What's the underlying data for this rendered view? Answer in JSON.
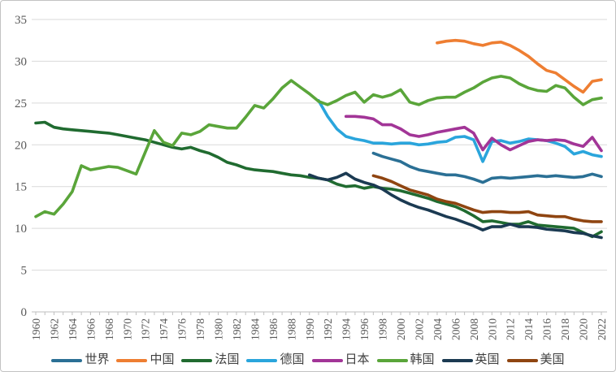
{
  "chart_data": {
    "type": "line",
    "title": "",
    "xlabel": "",
    "ylabel": "",
    "xlim": [
      1960,
      2022
    ],
    "ylim": [
      0,
      35
    ],
    "grid": "horizontal",
    "legend_position": "bottom",
    "y_ticks": [
      0,
      5,
      10,
      15,
      20,
      25,
      30,
      35
    ],
    "x_ticks": [
      "1960",
      "1962",
      "1964",
      "1966",
      "1968",
      "1970",
      "1972",
      "1974",
      "1976",
      "1978",
      "1980",
      "1982",
      "1984",
      "1986",
      "1988",
      "1990",
      "1992",
      "1994",
      "1996",
      "1998",
      "2000",
      "2002",
      "2004",
      "2006",
      "2008",
      "2010",
      "2012",
      "2014",
      "2016",
      "2018",
      "2020",
      "2022"
    ],
    "series": [
      {
        "id": "world",
        "label": "世界",
        "color": "#2b7095",
        "start_year": 1997,
        "values": [
          19.0,
          18.6,
          18.3,
          18.0,
          17.4,
          17.0,
          16.8,
          16.6,
          16.4,
          16.4,
          16.2,
          15.9,
          15.5,
          16.0,
          16.1,
          16.0,
          16.1,
          16.2,
          16.3,
          16.2,
          16.3,
          16.2,
          16.1,
          16.2,
          16.5,
          16.2
        ]
      },
      {
        "id": "china",
        "label": "中国",
        "color": "#ee7e32",
        "start_year": 2004,
        "values": [
          32.2,
          32.4,
          32.5,
          32.4,
          32.1,
          31.9,
          32.2,
          32.3,
          31.9,
          31.3,
          30.6,
          29.7,
          28.9,
          28.6,
          27.8,
          27.0,
          26.3,
          27.6,
          27.8
        ]
      },
      {
        "id": "france",
        "label": "法国",
        "color": "#206b30",
        "start_year": 1960,
        "values": [
          22.6,
          22.7,
          22.1,
          21.9,
          21.8,
          21.7,
          21.6,
          21.5,
          21.4,
          21.2,
          21.0,
          20.8,
          20.6,
          20.3,
          20.0,
          19.7,
          19.5,
          19.7,
          19.3,
          19.0,
          18.5,
          17.9,
          17.6,
          17.2,
          17.0,
          16.9,
          16.8,
          16.6,
          16.4,
          16.3,
          16.1,
          16.0,
          15.8,
          15.3,
          15.0,
          15.1,
          14.8,
          15.0,
          14.8,
          14.7,
          14.5,
          14.2,
          13.9,
          13.6,
          13.2,
          12.9,
          12.6,
          12.1,
          11.5,
          10.8,
          10.9,
          10.7,
          10.5,
          10.5,
          10.8,
          10.4,
          10.3,
          10.2,
          10.1,
          10.0,
          9.5,
          9.0,
          9.6
        ]
      },
      {
        "id": "germany",
        "label": "德国",
        "color": "#2aa5dc",
        "start_year": 1991,
        "values": [
          25.3,
          23.4,
          21.9,
          21.0,
          20.7,
          20.5,
          20.2,
          20.2,
          20.1,
          20.2,
          20.2,
          20.0,
          20.1,
          20.3,
          20.4,
          20.9,
          21.0,
          20.6,
          18.0,
          20.4,
          20.5,
          20.2,
          20.4,
          20.7,
          20.6,
          20.5,
          20.2,
          19.8,
          18.9,
          19.2,
          18.8,
          18.6
        ]
      },
      {
        "id": "japan",
        "label": "日本",
        "color": "#a23597",
        "start_year": 1994,
        "values": [
          23.4,
          23.4,
          23.3,
          23.1,
          22.4,
          22.4,
          21.9,
          21.2,
          21.0,
          21.2,
          21.5,
          21.7,
          21.9,
          22.1,
          21.4,
          19.4,
          20.8,
          20.0,
          19.4,
          19.9,
          20.4,
          20.6,
          20.5,
          20.6,
          20.5,
          20.1,
          19.8,
          20.9,
          19.3
        ]
      },
      {
        "id": "korea",
        "label": "韩国",
        "color": "#5aa53a",
        "start_year": 1960,
        "values": [
          11.4,
          12.0,
          11.7,
          12.9,
          14.4,
          17.5,
          17.0,
          17.2,
          17.4,
          17.3,
          16.9,
          16.5,
          19.1,
          21.7,
          20.3,
          19.9,
          21.4,
          21.2,
          21.6,
          22.4,
          22.2,
          22.0,
          22.0,
          23.3,
          24.7,
          24.4,
          25.5,
          26.8,
          27.7,
          26.9,
          26.1,
          25.2,
          24.8,
          25.3,
          25.9,
          26.3,
          25.1,
          26.0,
          25.7,
          26.0,
          26.6,
          25.1,
          24.8,
          25.3,
          25.6,
          25.7,
          25.7,
          26.3,
          26.8,
          27.5,
          28.0,
          28.2,
          28.0,
          27.3,
          26.8,
          26.5,
          26.4,
          27.1,
          26.8,
          25.7,
          24.8,
          25.4,
          25.6
        ]
      },
      {
        "id": "uk",
        "label": "英国",
        "color": "#1b3a52",
        "start_year": 1990,
        "values": [
          16.4,
          16.0,
          15.8,
          16.1,
          16.6,
          15.9,
          15.5,
          15.2,
          14.7,
          14.0,
          13.4,
          12.9,
          12.5,
          12.2,
          11.8,
          11.4,
          11.1,
          10.7,
          10.3,
          9.8,
          10.2,
          10.2,
          10.5,
          10.2,
          10.2,
          10.1,
          9.9,
          9.8,
          9.7,
          9.5,
          9.4,
          9.1,
          8.9
        ]
      },
      {
        "id": "usa",
        "label": "美国",
        "color": "#8f4511",
        "start_year": 1997,
        "values": [
          16.3,
          16.0,
          15.6,
          15.1,
          14.6,
          14.3,
          14.0,
          13.5,
          13.2,
          13.0,
          12.6,
          12.2,
          11.9,
          12.0,
          12.0,
          11.9,
          11.9,
          12.0,
          11.6,
          11.5,
          11.4,
          11.4,
          11.1,
          10.9,
          10.8,
          10.8
        ]
      }
    ],
    "style": {
      "gridline_color": "#d9d9d9",
      "axis_color": "#bfbfbf",
      "tick_label_color": "#595959",
      "legend_label_color": "#3f3f3f",
      "background": "#ffffff"
    }
  }
}
